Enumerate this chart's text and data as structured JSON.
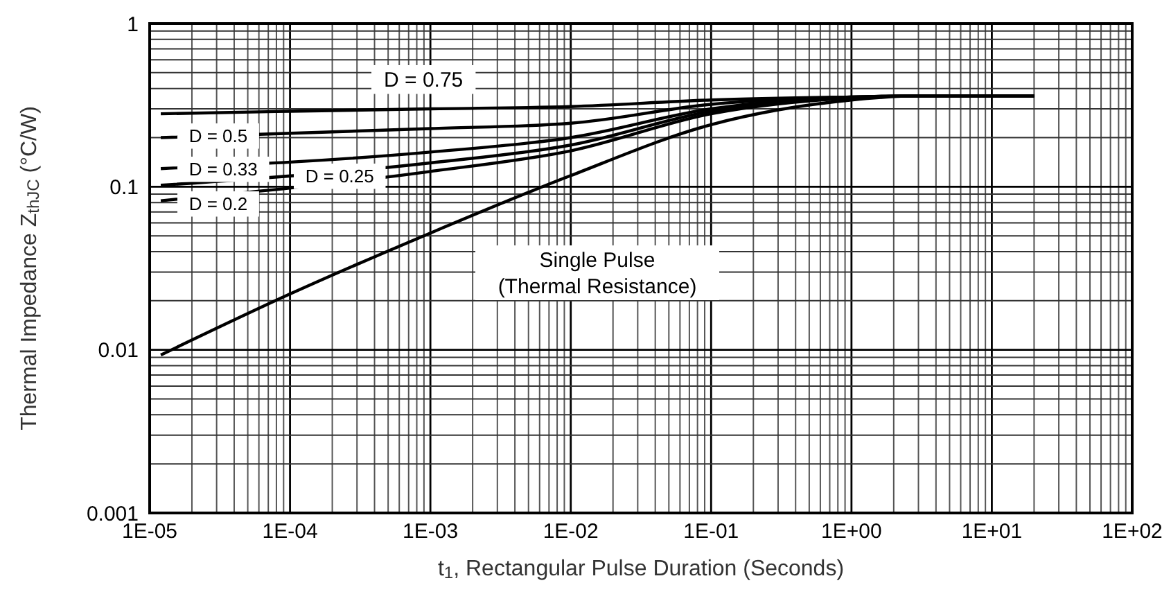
{
  "chart_data": {
    "type": "line",
    "xlabel": "t$_{1}$, Rectangular Pulse Duration (Seconds)",
    "ylabel": "Thermal Impedance Z$_{thJC}$ (°C/W)",
    "log": "xy",
    "grid": true,
    "marker": "none",
    "line_style": "solid",
    "xlim": [
      1e-05,
      100
    ],
    "ylim": [
      0.001,
      1
    ],
    "xticks": [
      {
        "value": 1e-05,
        "label": "1E-05"
      },
      {
        "value": 0.0001,
        "label": "1E-04"
      },
      {
        "value": 0.001,
        "label": "1E-03"
      },
      {
        "value": 0.01,
        "label": "1E-02"
      },
      {
        "value": 0.1,
        "label": "1E-01"
      },
      {
        "value": 1,
        "label": "1E+00"
      },
      {
        "value": 10,
        "label": "1E+01"
      },
      {
        "value": 100,
        "label": "1E+02"
      }
    ],
    "yticks": [
      0.001,
      0.01,
      0.1,
      1
    ],
    "x": [
      1.2e-05,
      0.0001,
      0.001,
      0.01,
      0.1,
      1,
      3,
      20
    ],
    "series": [
      {
        "name": "D = 0.75",
        "color": "#000000",
        "values": [
          0.28,
          0.29,
          0.3,
          0.31,
          0.34,
          0.355,
          0.36,
          0.36
        ]
      },
      {
        "name": "D = 0.5",
        "color": "#000000",
        "values": [
          0.2,
          null,
          0.227,
          0.245,
          0.32,
          0.355,
          0.36,
          0.36
        ]
      },
      {
        "name": "D = 0.33",
        "color": "#000000",
        "values": [
          0.129,
          null,
          0.163,
          0.2,
          0.3,
          0.355,
          0.36,
          0.36
        ]
      },
      {
        "name": "D = 0.25",
        "color": "#000000",
        "values": [
          0.102,
          null,
          0.14,
          0.18,
          0.29,
          0.35,
          0.36,
          0.36
        ]
      },
      {
        "name": "D = 0.2",
        "color": "#000000",
        "values": [
          0.082,
          null,
          0.124,
          0.166,
          0.28,
          0.35,
          0.36,
          0.36
        ]
      },
      {
        "name": "Single Pulse (Thermal Resistance)",
        "color": "#000000",
        "values": [
          0.0093,
          0.022,
          0.052,
          0.117,
          0.24,
          0.34,
          0.36,
          0.36
        ]
      }
    ]
  }
}
